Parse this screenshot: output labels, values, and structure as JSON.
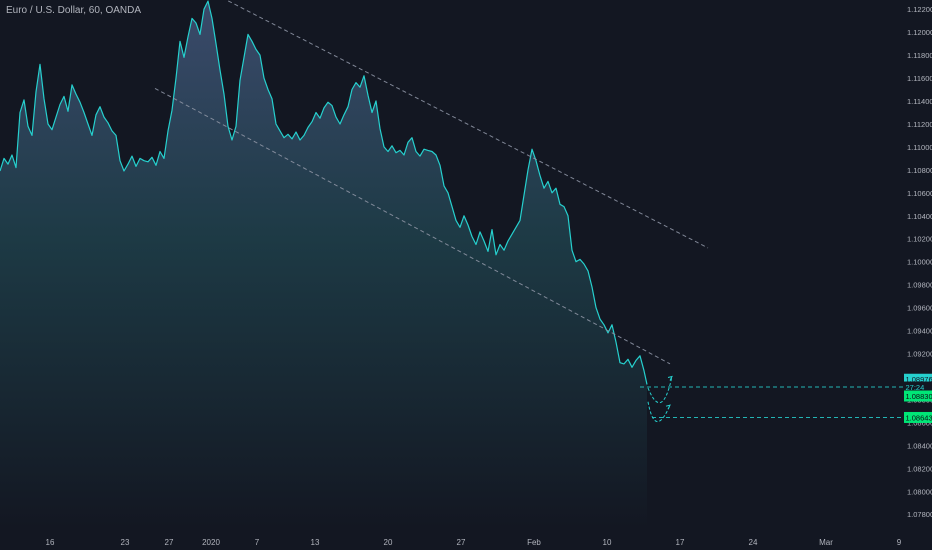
{
  "header": {
    "title": "Euro / U.S. Dollar, 60, OANDA"
  },
  "colors": {
    "background": "#131722",
    "line": "#26d0ce",
    "fill_top": "#3b4a6b",
    "fill_bottom": "#131722",
    "trendline": "#8c93a3",
    "axis_text": "#b2b5be",
    "label_cyan": "#26d0ce",
    "label_green": "#00e676",
    "label_dark": "#131722",
    "guide_dash": "#26d0ce"
  },
  "chart_data": {
    "type": "area",
    "title": "Euro / U.S. Dollar, 60, OANDA",
    "xlabel": "",
    "ylabel": "",
    "x_range": [
      0,
      900
    ],
    "ylim": [
      1.0768,
      1.1228
    ],
    "grid": false,
    "x_ticks": [
      {
        "x": 50,
        "label": "16"
      },
      {
        "x": 125,
        "label": "23"
      },
      {
        "x": 169,
        "label": "27"
      },
      {
        "x": 211,
        "label": "2020"
      },
      {
        "x": 257,
        "label": "7"
      },
      {
        "x": 315,
        "label": "13"
      },
      {
        "x": 388,
        "label": "20"
      },
      {
        "x": 461,
        "label": "27"
      },
      {
        "x": 534,
        "label": "Feb"
      },
      {
        "x": 607,
        "label": "10"
      },
      {
        "x": 680,
        "label": "17"
      },
      {
        "x": 753,
        "label": "24"
      },
      {
        "x": 826,
        "label": "Mar"
      },
      {
        "x": 899,
        "label": "9"
      }
    ],
    "y_ticks": [
      "1.12200",
      "1.12000",
      "1.11800",
      "1.11600",
      "1.11400",
      "1.11200",
      "1.11000",
      "1.10800",
      "1.10600",
      "1.10400",
      "1.10200",
      "1.10000",
      "1.09800",
      "1.09600",
      "1.09400",
      "1.09200",
      "1.09000",
      "1.08800",
      "1.08600",
      "1.08400",
      "1.08200",
      "1.08000",
      "1.07800"
    ],
    "price_labels": [
      {
        "value": 1.08976,
        "label": "1.08976",
        "style": "cyan"
      },
      {
        "value": 1.08908,
        "label": "27:24",
        "style": "dark"
      },
      {
        "value": 1.0883,
        "label": "1.08830",
        "style": "green"
      },
      {
        "value": 1.08643,
        "label": "1.08643",
        "style": "green"
      }
    ],
    "series": [
      {
        "points": [
          [
            0,
            1.1079
          ],
          [
            4,
            1.109
          ],
          [
            8,
            1.1085
          ],
          [
            12,
            1.1093
          ],
          [
            16,
            1.1082
          ],
          [
            20,
            1.113
          ],
          [
            24,
            1.1141
          ],
          [
            28,
            1.1118
          ],
          [
            32,
            1.111
          ],
          [
            36,
            1.1148
          ],
          [
            40,
            1.1172
          ],
          [
            44,
            1.1142
          ],
          [
            48,
            1.112
          ],
          [
            52,
            1.1115
          ],
          [
            56,
            1.1126
          ],
          [
            60,
            1.1137
          ],
          [
            64,
            1.1144
          ],
          [
            68,
            1.1131
          ],
          [
            72,
            1.1154
          ],
          [
            76,
            1.1146
          ],
          [
            80,
            1.1139
          ],
          [
            84,
            1.113
          ],
          [
            88,
            1.112
          ],
          [
            92,
            1.111
          ],
          [
            96,
            1.1128
          ],
          [
            100,
            1.1135
          ],
          [
            104,
            1.1126
          ],
          [
            108,
            1.1121
          ],
          [
            112,
            1.1114
          ],
          [
            116,
            1.111
          ],
          [
            120,
            1.1088
          ],
          [
            124,
            1.1079
          ],
          [
            128,
            1.1085
          ],
          [
            132,
            1.1092
          ],
          [
            136,
            1.1083
          ],
          [
            140,
            1.109
          ],
          [
            144,
            1.1088
          ],
          [
            148,
            1.1087
          ],
          [
            152,
            1.1091
          ],
          [
            156,
            1.1084
          ],
          [
            160,
            1.1096
          ],
          [
            164,
            1.109
          ],
          [
            168,
            1.1114
          ],
          [
            172,
            1.1132
          ],
          [
            176,
            1.116
          ],
          [
            180,
            1.1192
          ],
          [
            184,
            1.1178
          ],
          [
            188,
            1.1196
          ],
          [
            192,
            1.1212
          ],
          [
            196,
            1.1208
          ],
          [
            200,
            1.1198
          ],
          [
            204,
            1.122
          ],
          [
            208,
            1.1227
          ],
          [
            212,
            1.1212
          ],
          [
            216,
            1.119
          ],
          [
            220,
            1.1167
          ],
          [
            224,
            1.1146
          ],
          [
            228,
            1.1118
          ],
          [
            232,
            1.1106
          ],
          [
            236,
            1.1118
          ],
          [
            240,
            1.1158
          ],
          [
            244,
            1.1178
          ],
          [
            248,
            1.1198
          ],
          [
            252,
            1.1192
          ],
          [
            256,
            1.1185
          ],
          [
            260,
            1.118
          ],
          [
            264,
            1.116
          ],
          [
            268,
            1.115
          ],
          [
            272,
            1.1142
          ],
          [
            276,
            1.112
          ],
          [
            280,
            1.1114
          ],
          [
            284,
            1.1108
          ],
          [
            288,
            1.1111
          ],
          [
            292,
            1.1107
          ],
          [
            296,
            1.1113
          ],
          [
            300,
            1.1106
          ],
          [
            304,
            1.111
          ],
          [
            308,
            1.1117
          ],
          [
            312,
            1.1122
          ],
          [
            316,
            1.113
          ],
          [
            320,
            1.1125
          ],
          [
            324,
            1.1134
          ],
          [
            328,
            1.1139
          ],
          [
            332,
            1.1136
          ],
          [
            336,
            1.1126
          ],
          [
            340,
            1.112
          ],
          [
            344,
            1.1128
          ],
          [
            348,
            1.1135
          ],
          [
            352,
            1.115
          ],
          [
            356,
            1.1156
          ],
          [
            360,
            1.1152
          ],
          [
            364,
            1.1162
          ],
          [
            368,
            1.1145
          ],
          [
            372,
            1.113
          ],
          [
            376,
            1.114
          ],
          [
            380,
            1.1116
          ],
          [
            384,
            1.11
          ],
          [
            388,
            1.1096
          ],
          [
            392,
            1.1101
          ],
          [
            396,
            1.1095
          ],
          [
            400,
            1.1097
          ],
          [
            404,
            1.1093
          ],
          [
            408,
            1.1104
          ],
          [
            412,
            1.1108
          ],
          [
            416,
            1.1096
          ],
          [
            420,
            1.1092
          ],
          [
            424,
            1.1098
          ],
          [
            428,
            1.1097
          ],
          [
            432,
            1.1096
          ],
          [
            436,
            1.1093
          ],
          [
            440,
            1.1084
          ],
          [
            444,
            1.1066
          ],
          [
            448,
            1.106
          ],
          [
            452,
            1.1048
          ],
          [
            456,
            1.1036
          ],
          [
            460,
            1.103
          ],
          [
            464,
            1.104
          ],
          [
            468,
            1.1032
          ],
          [
            472,
            1.1022
          ],
          [
            476,
            1.1015
          ],
          [
            480,
            1.1026
          ],
          [
            484,
            1.1018
          ],
          [
            488,
            1.1009
          ],
          [
            492,
            1.1028
          ],
          [
            496,
            1.1006
          ],
          [
            500,
            1.1015
          ],
          [
            504,
            1.101
          ],
          [
            508,
            1.1018
          ],
          [
            512,
            1.1024
          ],
          [
            516,
            1.103
          ],
          [
            520,
            1.1036
          ],
          [
            524,
            1.1058
          ],
          [
            528,
            1.108
          ],
          [
            532,
            1.1098
          ],
          [
            536,
            1.1088
          ],
          [
            540,
            1.1075
          ],
          [
            544,
            1.1064
          ],
          [
            548,
            1.107
          ],
          [
            552,
            1.106
          ],
          [
            556,
            1.1064
          ],
          [
            560,
            1.105
          ],
          [
            564,
            1.1048
          ],
          [
            568,
            1.104
          ],
          [
            572,
            1.101
          ],
          [
            576,
            1.1
          ],
          [
            580,
            1.1002
          ],
          [
            584,
            1.0998
          ],
          [
            588,
            1.0992
          ],
          [
            592,
            1.0978
          ],
          [
            596,
            1.096
          ],
          [
            600,
            1.095
          ],
          [
            604,
            1.0945
          ],
          [
            608,
            1.0938
          ],
          [
            612,
            1.0945
          ],
          [
            616,
            1.093
          ],
          [
            620,
            1.0912
          ],
          [
            624,
            1.0911
          ],
          [
            628,
            1.0915
          ],
          [
            632,
            1.0908
          ],
          [
            636,
            1.0914
          ],
          [
            640,
            1.0918
          ],
          [
            644,
            1.0905
          ],
          [
            647,
            1.0893
          ]
        ]
      }
    ],
    "trendlines": [
      {
        "x1": 222,
        "y1": 1.123,
        "x2": 708,
        "y2": 1.1012
      },
      {
        "x1": 155,
        "y1": 1.1151,
        "x2": 670,
        "y2": 1.0911
      }
    ],
    "projections": [
      {
        "x1": 648,
        "y1": 1.089,
        "cx": 662,
        "cy": 1.086,
        "x2": 672,
        "y2": 1.09
      },
      {
        "x1": 648,
        "y1": 1.0878,
        "cx": 655,
        "cy": 1.0845,
        "x2": 670,
        "y2": 1.0875
      }
    ],
    "guides": [
      {
        "value": 1.08908,
        "x_start": 640
      },
      {
        "value": 1.08643,
        "x_start": 652
      }
    ]
  }
}
